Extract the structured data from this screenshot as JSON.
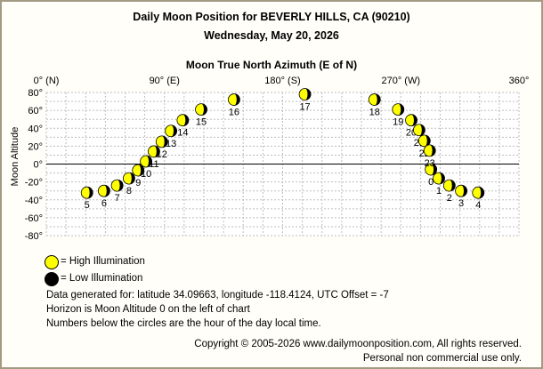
{
  "title": "Daily Moon Position for BEVERLY HILLS, CA (90210)",
  "subtitle": "Wednesday, May 20, 2026",
  "chart_data": {
    "type": "scatter",
    "title": "Daily Moon Position for BEVERLY HILLS, CA (90210)",
    "xlabel": "Moon True North Azimuth (E of N)",
    "ylabel": "Moon Altitude",
    "xlim": [
      0,
      360
    ],
    "ylim": [
      -80,
      80
    ],
    "x_ticks": [
      {
        "value": 0,
        "label": "0° (N)"
      },
      {
        "value": 90,
        "label": "90° (E)"
      },
      {
        "value": 180,
        "label": "180° (S)"
      },
      {
        "value": 270,
        "label": "270° (W)"
      },
      {
        "value": 360,
        "label": "360°"
      }
    ],
    "y_ticks": [
      {
        "value": 80,
        "label": "80°"
      },
      {
        "value": 60,
        "label": "60°"
      },
      {
        "value": 40,
        "label": "40°"
      },
      {
        "value": 20,
        "label": "20°"
      },
      {
        "value": 0,
        "label": "0°"
      },
      {
        "value": -20,
        "label": "-20°"
      },
      {
        "value": -40,
        "label": "-40°"
      },
      {
        "value": -60,
        "label": "-60°"
      },
      {
        "value": -80,
        "label": "-80°"
      }
    ],
    "grid": true,
    "points": [
      {
        "hour": "0",
        "az": 293,
        "alt": -6
      },
      {
        "hour": "1",
        "az": 299,
        "alt": -16
      },
      {
        "hour": "2",
        "az": 307,
        "alt": -24
      },
      {
        "hour": "3",
        "az": 316,
        "alt": -30
      },
      {
        "hour": "4",
        "az": 329,
        "alt": -32
      },
      {
        "hour": "5",
        "az": 31,
        "alt": -32
      },
      {
        "hour": "6",
        "az": 44,
        "alt": -30
      },
      {
        "hour": "7",
        "az": 54,
        "alt": -24
      },
      {
        "hour": "8",
        "az": 63,
        "alt": -16
      },
      {
        "hour": "9",
        "az": 70,
        "alt": -7
      },
      {
        "hour": "10",
        "az": 76,
        "alt": 3
      },
      {
        "hour": "11",
        "az": 82,
        "alt": 14
      },
      {
        "hour": "12",
        "az": 88,
        "alt": 25
      },
      {
        "hour": "13",
        "az": 95,
        "alt": 37
      },
      {
        "hour": "14",
        "az": 104,
        "alt": 49
      },
      {
        "hour": "15",
        "az": 118,
        "alt": 61
      },
      {
        "hour": "16",
        "az": 143,
        "alt": 72
      },
      {
        "hour": "17",
        "az": 197,
        "alt": 78
      },
      {
        "hour": "18",
        "az": 250,
        "alt": 72
      },
      {
        "hour": "19",
        "az": 268,
        "alt": 61
      },
      {
        "hour": "20",
        "az": 278,
        "alt": 49
      },
      {
        "hour": "21",
        "az": 284,
        "alt": 38
      },
      {
        "hour": "22",
        "az": 288,
        "alt": 26
      },
      {
        "hour": "23",
        "az": 292,
        "alt": 15
      }
    ]
  },
  "legend": {
    "high_label": "= High Illumination",
    "low_label": "= Low Illumination",
    "high_color": "#ffff00",
    "low_color": "#000000"
  },
  "info": {
    "line1": "Data generated for: latitude 34.09663, longitude -118.4124, UTC Offset = -7",
    "line2": "Horizon is Moon Altitude 0 on the left of chart",
    "line3": "Numbers below the circles are the hour of the day local time."
  },
  "copyright": {
    "line1": "Copyright © 2005-2026 www.dailymoonposition.com, All rights reserved.",
    "line2": "Personal non commercial use only."
  },
  "colors": {
    "moon_lit": "#ffff00",
    "moon_dark": "#000000",
    "grid": "#bdbdbd",
    "horizon": "#000000",
    "frame": "#a39a83"
  }
}
